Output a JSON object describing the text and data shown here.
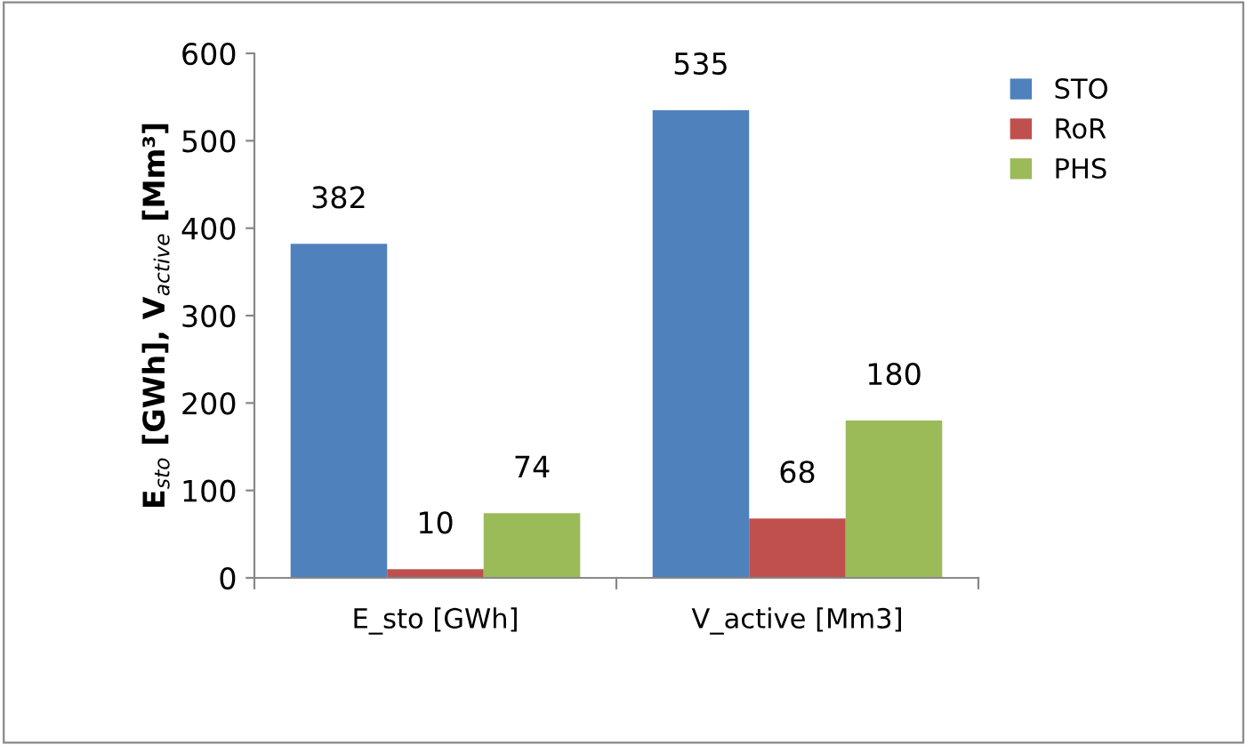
{
  "chart_data": {
    "type": "bar",
    "ylabel": "E$_{sto}$ [GWh], V$_{active}$ [Mm³]",
    "categories": [
      "E_sto [GWh]",
      "V_active [Mm3]"
    ],
    "series": [
      {
        "name": "STO",
        "color": "#4f81bd",
        "values": [
          382,
          535
        ]
      },
      {
        "name": "RoR",
        "color": "#c0504d",
        "values": [
          10,
          68
        ]
      },
      {
        "name": "PHS",
        "color": "#9bbb59",
        "values": [
          74,
          180
        ]
      }
    ],
    "ylim": [
      0,
      600
    ],
    "yticks": [
      0,
      100,
      200,
      300,
      400,
      500,
      600
    ],
    "data_labels": true,
    "legend": "top right",
    "grid": false
  }
}
